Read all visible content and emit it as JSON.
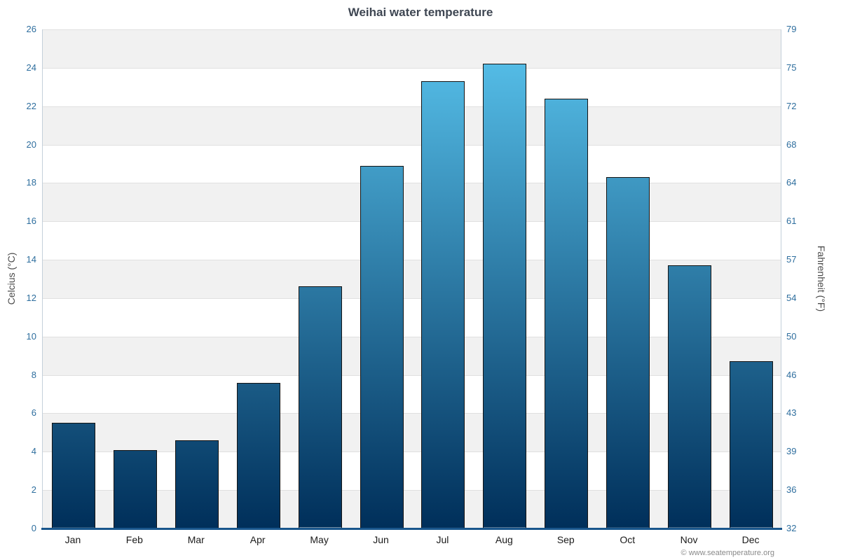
{
  "chart_data": {
    "type": "bar",
    "title": "Weihai water temperature",
    "ylabel_left": "Celcius (°C)",
    "ylabel_right": "Fahrenheit (°F)",
    "categories": [
      "Jan",
      "Feb",
      "Mar",
      "Apr",
      "May",
      "Jun",
      "Jul",
      "Aug",
      "Sep",
      "Oct",
      "Nov",
      "Dec"
    ],
    "values": [
      5.5,
      4.1,
      4.6,
      7.6,
      12.6,
      18.9,
      23.3,
      24.2,
      22.4,
      18.3,
      13.7,
      8.7
    ],
    "ylim_c": [
      0,
      26
    ],
    "c_ticks": [
      0,
      2,
      4,
      6,
      8,
      10,
      12,
      14,
      16,
      18,
      20,
      22,
      24,
      26
    ],
    "f_ticks": [
      32,
      36,
      39,
      43,
      46,
      50,
      54,
      57,
      61,
      64,
      68,
      72,
      75,
      79
    ],
    "grid": true,
    "legend": "none",
    "bar_top_color": "#5ac6f0",
    "bar_bottom_color": "#002f5a",
    "bar_border_color": "#141414",
    "axis_line_color": "#19568c"
  },
  "footer": {
    "credit": "© www.seatemperature.org"
  }
}
